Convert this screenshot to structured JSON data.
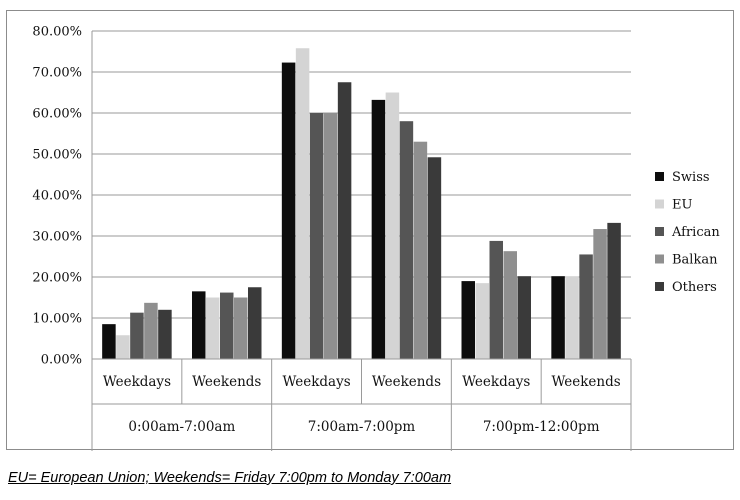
{
  "chart_data": {
    "type": "bar",
    "categories": [
      "Weekdays",
      "Weekends",
      "Weekdays",
      "Weekends",
      "Weekdays",
      "Weekends"
    ],
    "groups": [
      {
        "label": "0:00am-7:00am",
        "categories": [
          "Weekdays",
          "Weekends"
        ]
      },
      {
        "label": "7:00am-7:00pm",
        "categories": [
          "Weekdays",
          "Weekends"
        ]
      },
      {
        "label": "7:00pm-12:00pm",
        "categories": [
          "Weekdays",
          "Weekends"
        ]
      }
    ],
    "series": [
      {
        "name": "Swiss",
        "color": "#0d0d0d",
        "values": [
          8.5,
          16.5,
          72.3,
          63.2,
          19.0,
          20.2
        ]
      },
      {
        "name": "EU",
        "color": "#d4d4d4",
        "values": [
          5.8,
          15.0,
          75.8,
          65.0,
          18.5,
          20.2
        ]
      },
      {
        "name": "African",
        "color": "#555555",
        "values": [
          11.3,
          16.2,
          60.0,
          58.0,
          28.8,
          25.5
        ]
      },
      {
        "name": "Balkan",
        "color": "#8f8f8f",
        "values": [
          13.7,
          15.0,
          60.0,
          53.0,
          26.3,
          31.7
        ]
      },
      {
        "name": "Others",
        "color": "#3a3a3a",
        "values": [
          12.0,
          17.5,
          67.5,
          49.2,
          20.2,
          33.2
        ]
      }
    ],
    "yticks": [
      "0.00%",
      "10.00%",
      "20.00%",
      "30.00%",
      "40.00%",
      "50.00%",
      "60.00%",
      "70.00%",
      "80.00%"
    ],
    "ylim": [
      0,
      80
    ],
    "grid": true,
    "legend": "right"
  },
  "footnote": "EU= European Union; Weekends= Friday 7:00pm to Monday 7:00am"
}
